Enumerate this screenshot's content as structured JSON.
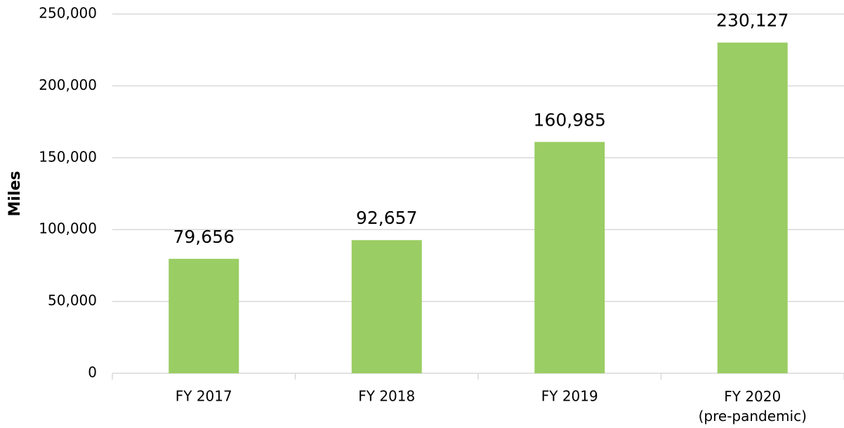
{
  "chart_data": {
    "type": "bar",
    "y_label": "Miles",
    "categories": [
      "FY 2017",
      "FY 2018",
      "FY 2019",
      "FY 2020\n(pre-pandemic)"
    ],
    "values": [
      79656,
      92657,
      160985,
      230127
    ],
    "value_labels": [
      "79,656",
      "92,657",
      "160,985",
      "230,127"
    ],
    "color": "#9acd63",
    "ylim": [
      0,
      250000
    ],
    "yticks": [
      0,
      {
        "value": 50000,
        "label": "50,000"
      },
      {
        "value": 100000,
        "label": "100,000"
      },
      {
        "value": 150000,
        "label": "150,000"
      },
      {
        "value": 200000,
        "label": "200,000"
      },
      {
        "value": 250000,
        "label": "250,000"
      }
    ],
    "grid": true
  }
}
